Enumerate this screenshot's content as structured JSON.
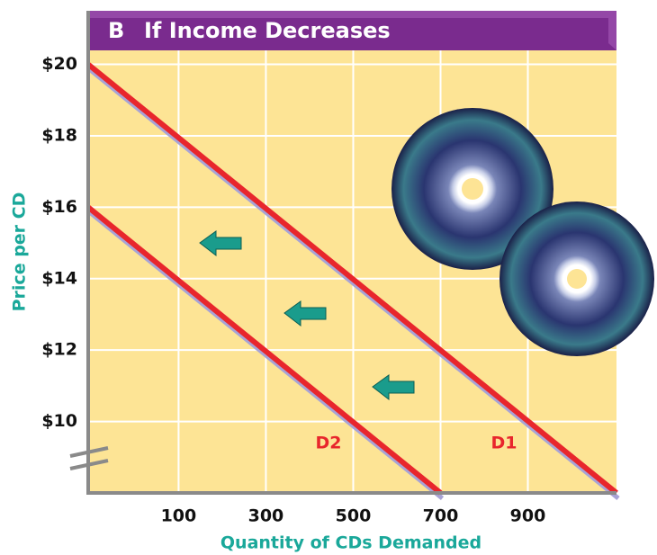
{
  "chart_data": {
    "type": "line",
    "panel_label": "B",
    "title": "If Income Decreases",
    "xlabel": "Quantity of CDs Demanded",
    "ylabel": "Price per CD",
    "series": [
      {
        "name": "D1",
        "color": "#e8262c",
        "x": [
          -107,
          1103
        ],
        "values": [
          20,
          8
        ]
      },
      {
        "name": "D2",
        "color": "#e8262c",
        "x": [
          -107,
          700
        ],
        "values": [
          16,
          8
        ]
      }
    ],
    "xlim": [
      -107,
      1103
    ],
    "ylim": [
      8,
      21.5
    ],
    "xticks": [
      100,
      300,
      500,
      700,
      900
    ],
    "yticks": [
      {
        "value": 10,
        "label": "$10"
      },
      {
        "value": 12,
        "label": "$12"
      },
      {
        "value": 14,
        "label": "$14"
      },
      {
        "value": 16,
        "label": "$16"
      },
      {
        "value": 18,
        "label": "$18"
      },
      {
        "value": 20,
        "label": "$20"
      }
    ],
    "grid": true
  }
}
